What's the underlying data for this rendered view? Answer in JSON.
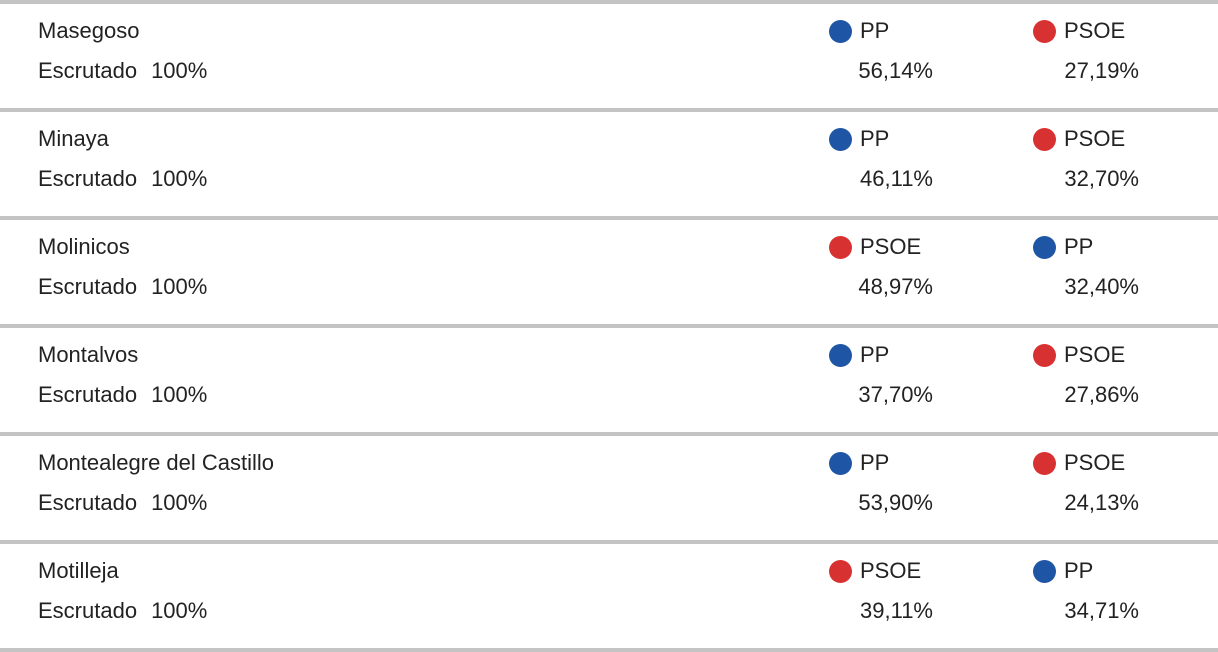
{
  "colors": {
    "PP": "#1e55a5",
    "PSOE": "#d83131",
    "divider": "#c4c4c4",
    "text": "#222222"
  },
  "rows": [
    {
      "name": "Masegoso",
      "scrutiny_label": "Escrutado",
      "scrutiny_value": "100%",
      "first": {
        "party": "PP",
        "percent": "56,14%"
      },
      "second": {
        "party": "PSOE",
        "percent": "27,19%"
      }
    },
    {
      "name": "Minaya",
      "scrutiny_label": "Escrutado",
      "scrutiny_value": "100%",
      "first": {
        "party": "PP",
        "percent": "46,11%"
      },
      "second": {
        "party": "PSOE",
        "percent": "32,70%"
      }
    },
    {
      "name": "Molinicos",
      "scrutiny_label": "Escrutado",
      "scrutiny_value": "100%",
      "first": {
        "party": "PSOE",
        "percent": "48,97%"
      },
      "second": {
        "party": "PP",
        "percent": "32,40%"
      }
    },
    {
      "name": "Montalvos",
      "scrutiny_label": "Escrutado",
      "scrutiny_value": "100%",
      "first": {
        "party": "PP",
        "percent": "37,70%"
      },
      "second": {
        "party": "PSOE",
        "percent": "27,86%"
      }
    },
    {
      "name": "Montealegre del Castillo",
      "scrutiny_label": "Escrutado",
      "scrutiny_value": "100%",
      "first": {
        "party": "PP",
        "percent": "53,90%"
      },
      "second": {
        "party": "PSOE",
        "percent": "24,13%"
      }
    },
    {
      "name": "Motilleja",
      "scrutiny_label": "Escrutado",
      "scrutiny_value": "100%",
      "first": {
        "party": "PSOE",
        "percent": "39,11%"
      },
      "second": {
        "party": "PP",
        "percent": "34,71%"
      }
    }
  ]
}
